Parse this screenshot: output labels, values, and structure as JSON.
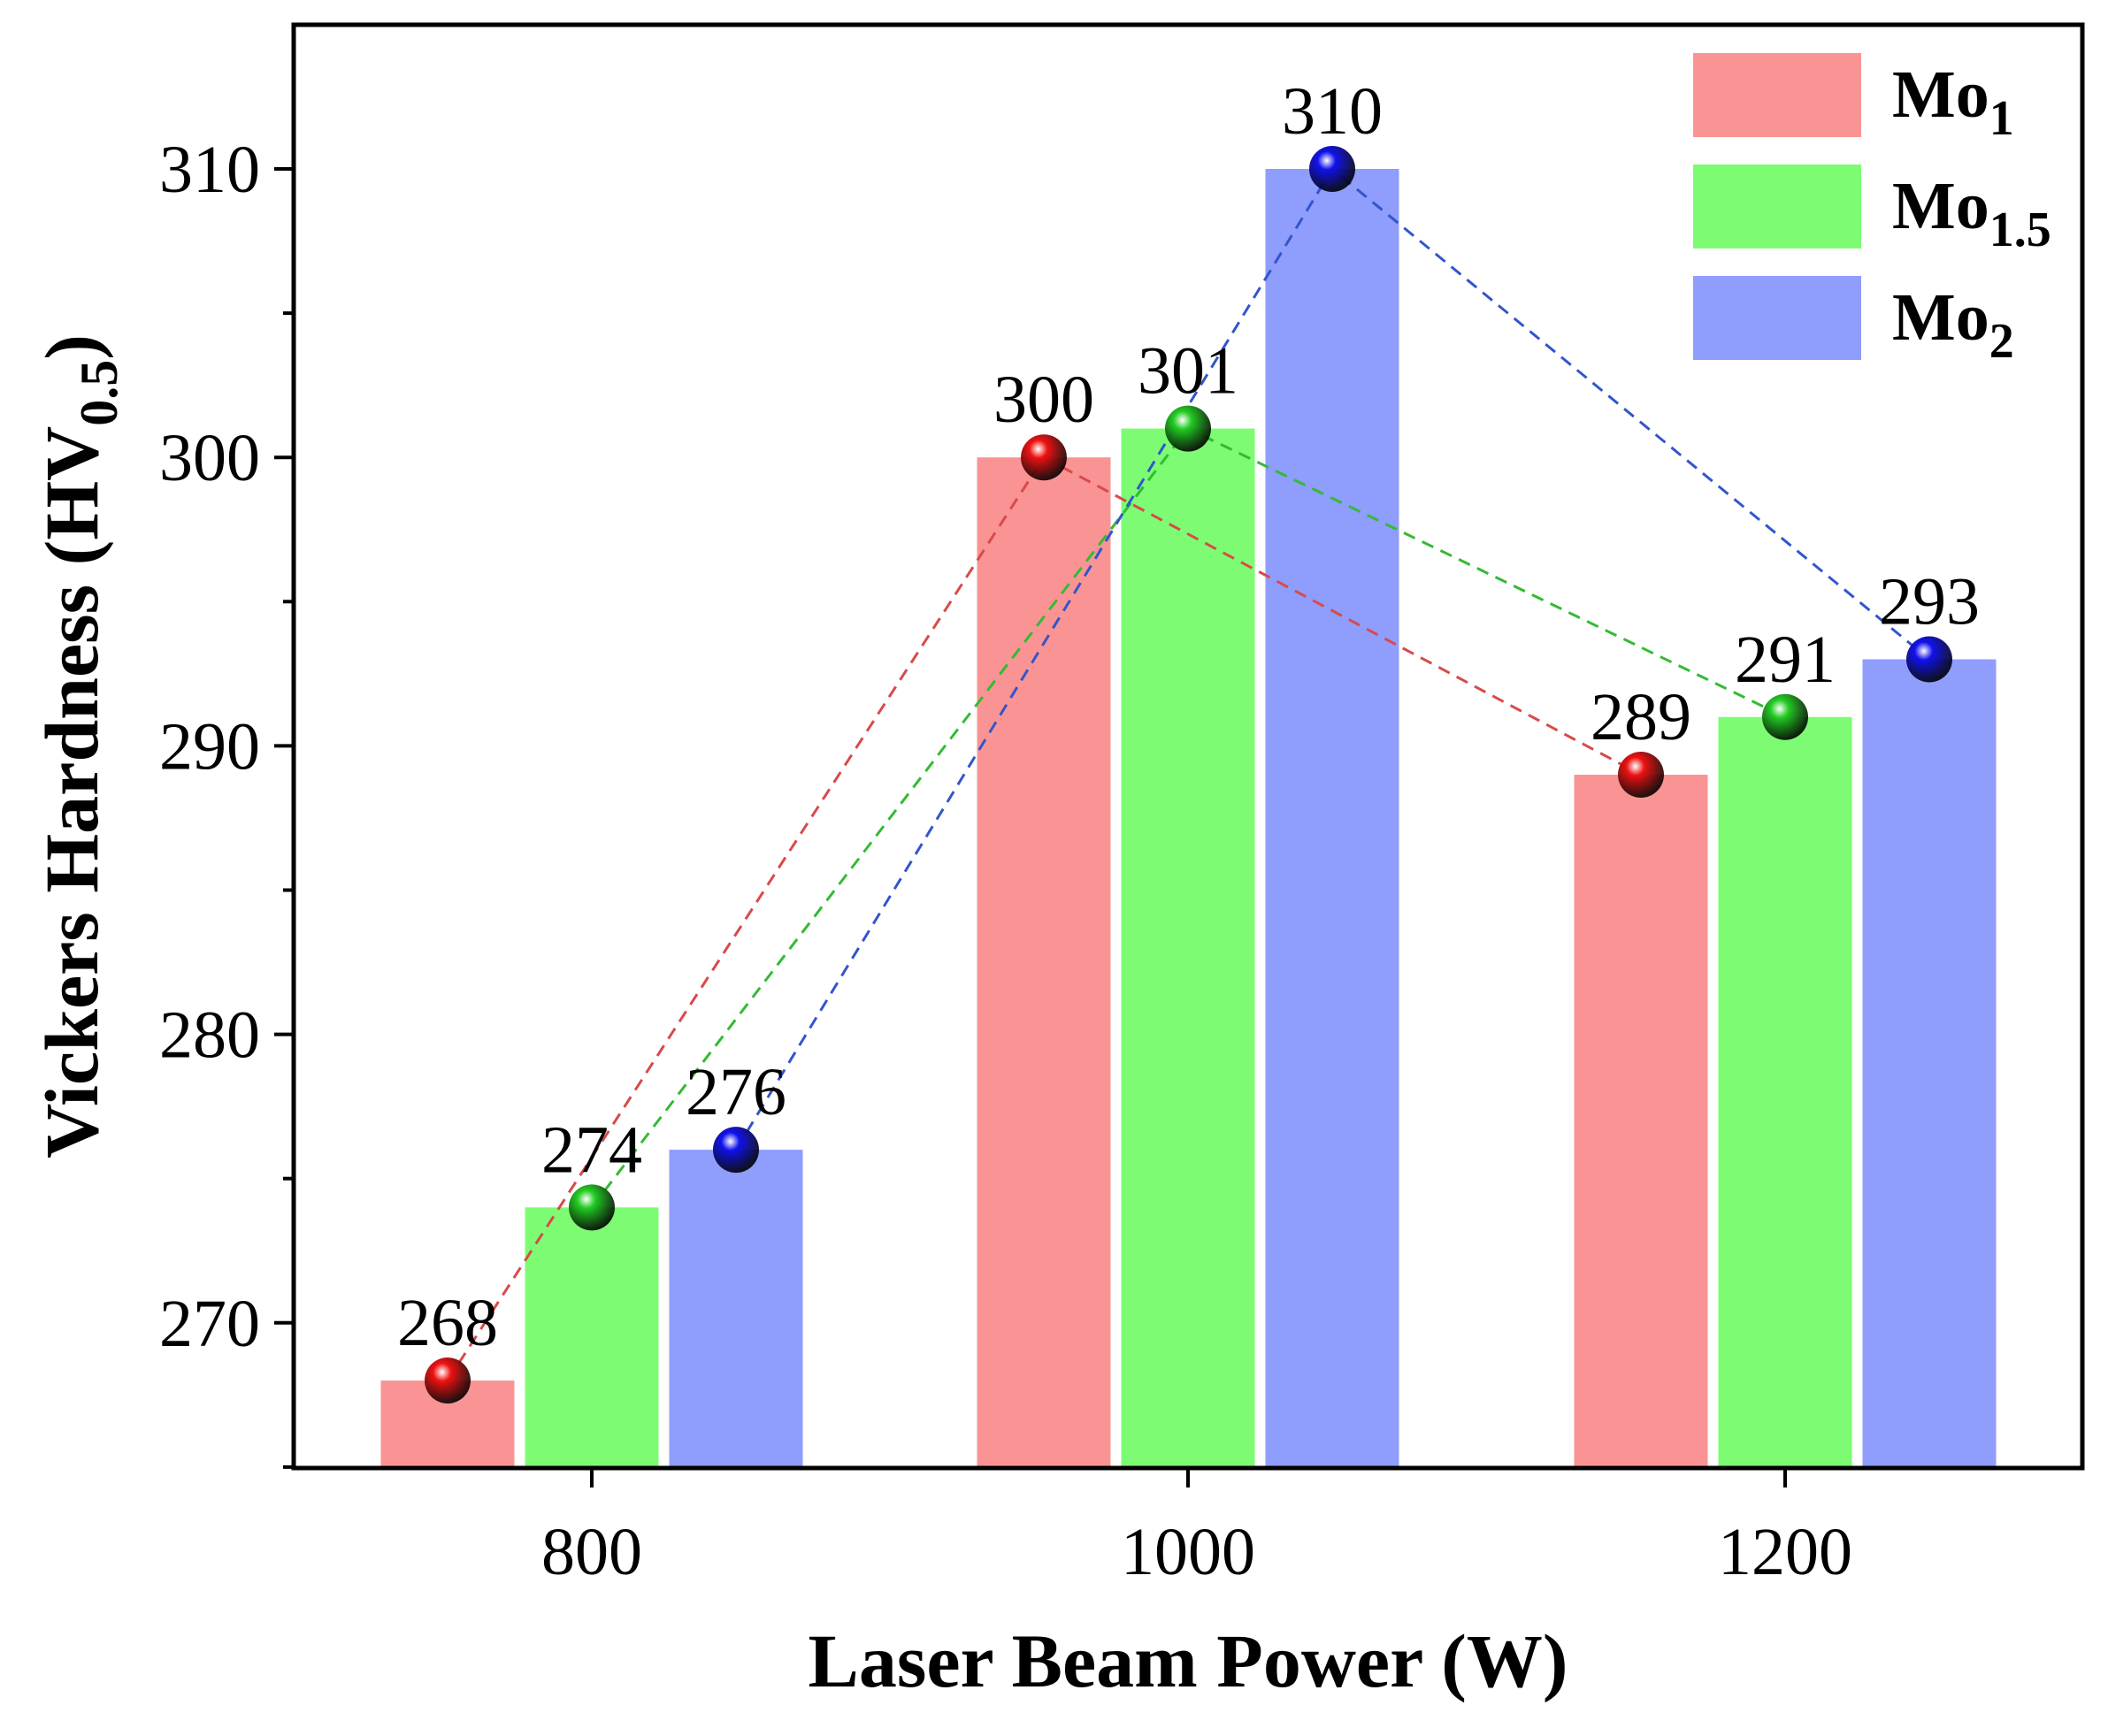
{
  "chart_data": {
    "type": "bar",
    "xlabel": "Laser Beam Power (W)",
    "ylabel_main": "Vickers Hardness (HV",
    "ylabel_sub": "0.5",
    "ylabel_end": ")",
    "categories": [
      "800",
      "1000",
      "1200"
    ],
    "ylim": [
      265,
      315
    ],
    "yticks": [
      270,
      280,
      290,
      300,
      310
    ],
    "series": [
      {
        "name": "Mo",
        "sub": "1",
        "values": [
          268,
          300,
          289
        ],
        "bar_color": "#fa9494",
        "marker_color": "#ee1111",
        "line_color": "#d84a4a"
      },
      {
        "name": "Mo",
        "sub": "1.5",
        "values": [
          274,
          301,
          291
        ],
        "bar_color": "#7dfc73",
        "marker_color": "#22cc22",
        "line_color": "#33bb33"
      },
      {
        "name": "Mo",
        "sub": "2",
        "values": [
          276,
          310,
          293
        ],
        "bar_color": "#8f9dfc",
        "marker_color": "#1111ee",
        "line_color": "#3355cc"
      }
    ],
    "data_labels": [
      [
        "268",
        "300",
        "289"
      ],
      [
        "274",
        "301",
        "291"
      ],
      [
        "276",
        "310",
        "293"
      ]
    ],
    "legend_position": "top-right",
    "connectors": "dashed"
  }
}
